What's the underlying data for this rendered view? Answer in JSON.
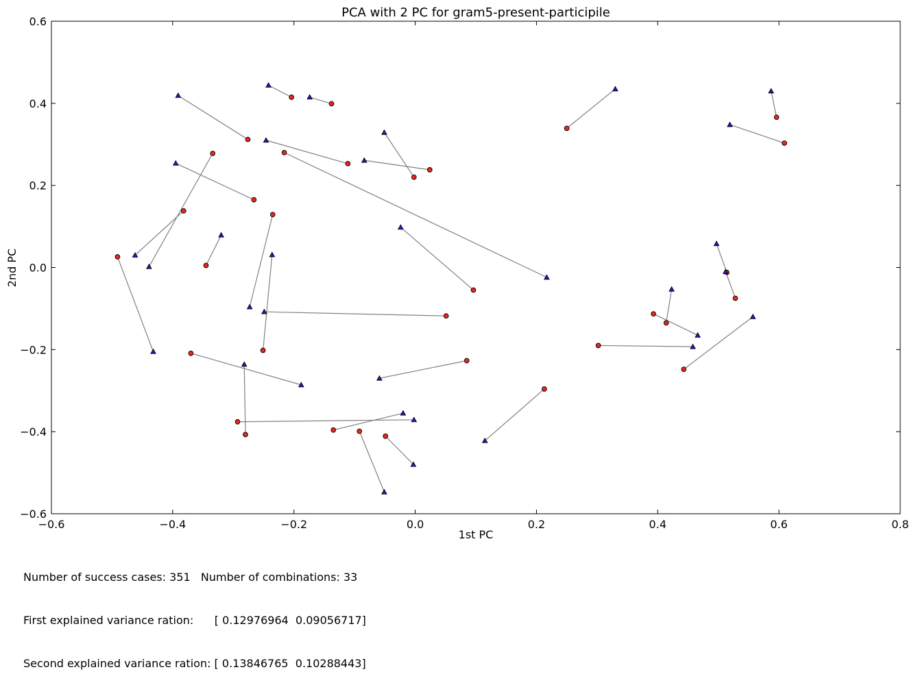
{
  "chart_data": {
    "type": "scatter",
    "title": "PCA with 2 PC for gram5-present-participile",
    "xlabel": "1st PC",
    "ylabel": "2nd PC",
    "xlim": [
      -0.6,
      0.8
    ],
    "ylim": [
      -0.6,
      0.6
    ],
    "xticks": [
      -0.6,
      -0.4,
      -0.2,
      0.0,
      0.2,
      0.4,
      0.6,
      0.8
    ],
    "yticks": [
      -0.6,
      -0.4,
      -0.2,
      0.0,
      0.2,
      0.4,
      0.6
    ],
    "xtick_labels": [
      "−0.6",
      "−0.4",
      "−0.2",
      "0.0",
      "0.2",
      "0.4",
      "0.6",
      "0.8"
    ],
    "ytick_labels": [
      "−0.6",
      "−0.4",
      "−0.2",
      "0.0",
      "0.2",
      "0.4",
      "0.6"
    ],
    "grid": false,
    "marker_colors": {
      "circle": "#e8281e",
      "triangle": "#1e1ec8",
      "line": "#808080"
    },
    "pairs": [
      {
        "circle": [
          -0.204,
          0.415
        ],
        "triangle": [
          -0.242,
          0.444
        ]
      },
      {
        "circle": [
          -0.138,
          0.399
        ],
        "triangle": [
          -0.174,
          0.415
        ]
      },
      {
        "circle": [
          -0.276,
          0.312
        ],
        "triangle": [
          -0.391,
          0.419
        ]
      },
      {
        "circle": [
          -0.111,
          0.253
        ],
        "triangle": [
          -0.246,
          0.31
        ]
      },
      {
        "circle": [
          -0.002,
          0.22
        ],
        "triangle": [
          -0.051,
          0.329
        ]
      },
      {
        "circle": [
          0.024,
          0.238
        ],
        "triangle": [
          -0.084,
          0.261
        ]
      },
      {
        "circle": [
          -0.266,
          0.165
        ],
        "triangle": [
          -0.395,
          0.254
        ]
      },
      {
        "circle": [
          -0.382,
          0.138
        ],
        "triangle": [
          -0.462,
          0.03
        ]
      },
      {
        "circle": [
          -0.334,
          0.278
        ],
        "triangle": [
          -0.439,
          0.002
        ]
      },
      {
        "circle": [
          -0.345,
          0.005
        ],
        "triangle": [
          -0.32,
          0.079
        ]
      },
      {
        "circle": [
          -0.491,
          0.026
        ],
        "triangle": [
          -0.432,
          -0.205
        ]
      },
      {
        "circle": [
          -0.235,
          0.129
        ],
        "triangle": [
          -0.273,
          -0.096
        ]
      },
      {
        "circle": [
          -0.251,
          -0.202
        ],
        "triangle": [
          -0.236,
          0.031
        ]
      },
      {
        "circle": [
          -0.216,
          0.28
        ],
        "triangle": [
          0.217,
          -0.024
        ]
      },
      {
        "circle": [
          0.096,
          -0.055
        ],
        "triangle": [
          -0.024,
          0.098
        ]
      },
      {
        "circle": [
          0.051,
          -0.118
        ],
        "triangle": [
          -0.249,
          -0.108
        ]
      },
      {
        "circle": [
          -0.37,
          -0.209
        ],
        "triangle": [
          -0.188,
          -0.286
        ]
      },
      {
        "circle": [
          -0.28,
          -0.407
        ],
        "triangle": [
          -0.282,
          -0.236
        ]
      },
      {
        "circle": [
          -0.293,
          -0.376
        ],
        "triangle": [
          -0.002,
          -0.371
        ]
      },
      {
        "circle": [
          -0.135,
          -0.396
        ],
        "triangle": [
          -0.02,
          -0.355
        ]
      },
      {
        "circle": [
          -0.092,
          -0.399
        ],
        "triangle": [
          -0.051,
          -0.547
        ]
      },
      {
        "circle": [
          -0.049,
          -0.411
        ],
        "triangle": [
          -0.003,
          -0.48
        ]
      },
      {
        "circle": [
          0.085,
          -0.227
        ],
        "triangle": [
          -0.059,
          -0.27
        ]
      },
      {
        "circle": [
          0.213,
          -0.296
        ],
        "triangle": [
          0.115,
          -0.422
        ]
      },
      {
        "circle": [
          0.25,
          0.339
        ],
        "triangle": [
          0.33,
          0.435
        ]
      },
      {
        "circle": [
          0.596,
          0.366
        ],
        "triangle": [
          0.587,
          0.43
        ]
      },
      {
        "circle": [
          0.609,
          0.303
        ],
        "triangle": [
          0.519,
          0.348
        ]
      },
      {
        "circle": [
          0.514,
          -0.012
        ],
        "triangle": [
          0.497,
          0.058
        ]
      },
      {
        "circle": [
          0.528,
          -0.075
        ],
        "triangle": [
          0.512,
          -0.01
        ]
      },
      {
        "circle": [
          0.414,
          -0.135
        ],
        "triangle": [
          0.423,
          -0.053
        ]
      },
      {
        "circle": [
          0.393,
          -0.113
        ],
        "triangle": [
          0.466,
          -0.165
        ]
      },
      {
        "circle": [
          0.302,
          -0.19
        ],
        "triangle": [
          0.458,
          -0.193
        ]
      },
      {
        "circle": [
          0.443,
          -0.248
        ],
        "triangle": [
          0.557,
          -0.12
        ]
      }
    ]
  },
  "footer": {
    "line1": "Number of success cases: 351   Number of combinations: 33",
    "line2": "First explained variance ration:      [ 0.12976964  0.09056717]",
    "line3": "Second explained variance ration: [ 0.13846765  0.10288443]"
  }
}
